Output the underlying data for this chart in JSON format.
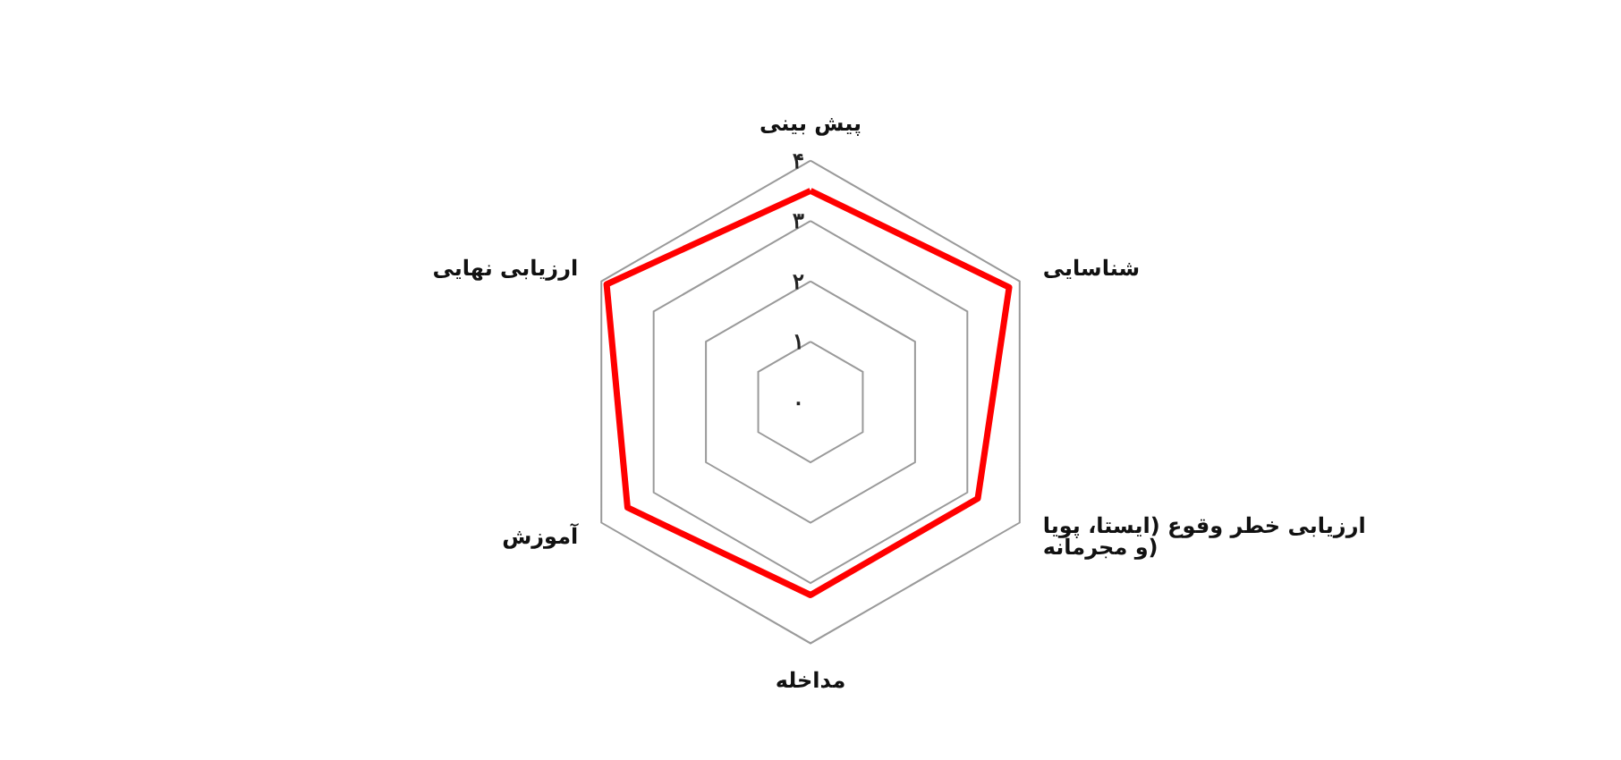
{
  "chart_data": {
    "type": "radar",
    "categories": [
      "پیش بینی",
      "شناسایی",
      "ارزیابی خطر وقوع (ایستا، پویا و مجرمانه)",
      "مداخله",
      "آموزش",
      "ارزیابی نهایی"
    ],
    "series": [
      {
        "color": "#ff0000",
        "values": [
          3.5,
          3.8,
          3.2,
          3.2,
          3.5,
          3.9
        ]
      }
    ],
    "ylim": [
      0,
      4
    ],
    "yticks": [
      {
        "value": 0,
        "label": "۰"
      },
      {
        "value": 1,
        "label": "۱"
      },
      {
        "value": 2,
        "label": "۲"
      },
      {
        "value": 3,
        "label": "۳"
      },
      {
        "value": 4,
        "label": "۴"
      }
    ],
    "grid": true,
    "marker": "none",
    "line_style": "solid"
  }
}
